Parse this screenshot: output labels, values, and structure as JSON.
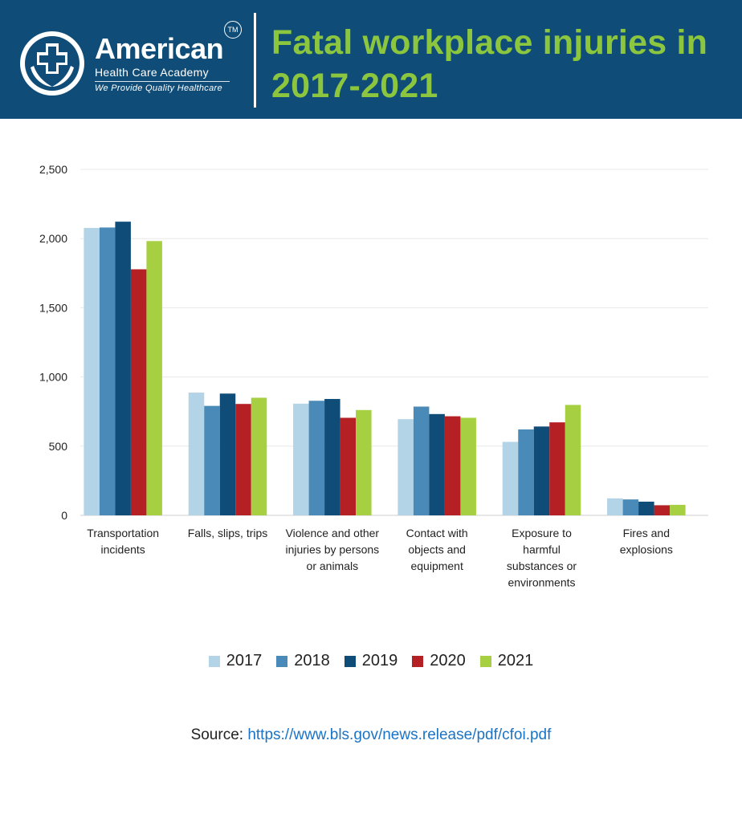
{
  "header": {
    "brand_name": "American",
    "brand_tm": "TM",
    "brand_sub": "Health Care Academy",
    "brand_tag": "We Provide Quality Healthcare",
    "title": "Fatal workplace injuries in 2017-2021",
    "background": "#0f4d78",
    "title_color": "#8cc63f"
  },
  "chart_data": {
    "type": "bar",
    "title": "Fatal workplace injuries in 2017-2021",
    "xlabel": "",
    "ylabel": "",
    "ylim": [
      0,
      2500
    ],
    "yticks": [
      0,
      500,
      1000,
      1500,
      2000,
      2500
    ],
    "ytick_labels": [
      "0",
      "500",
      "1,000",
      "1,500",
      "2,000",
      "2,500"
    ],
    "grid": true,
    "legend_position": "bottom",
    "categories": [
      [
        "Transportation",
        "incidents"
      ],
      [
        "Falls, slips, trips"
      ],
      [
        "Violence and other",
        "injuries by persons",
        "or animals"
      ],
      [
        "Contact with",
        "objects and",
        "equipment"
      ],
      [
        "Exposure to",
        "harmful",
        "substances or",
        "environments"
      ],
      [
        "Fires and",
        "explosions"
      ]
    ],
    "series": [
      {
        "name": "2017",
        "color": "#b3d3e6",
        "values": [
          2077,
          887,
          807,
          695,
          531,
          123
        ]
      },
      {
        "name": "2018",
        "color": "#4a8ab8",
        "values": [
          2080,
          791,
          828,
          786,
          621,
          115
        ]
      },
      {
        "name": "2019",
        "color": "#0f4d78",
        "values": [
          2122,
          880,
          841,
          732,
          642,
          99
        ]
      },
      {
        "name": "2020",
        "color": "#b52025",
        "values": [
          1778,
          805,
          705,
          716,
          672,
          73
        ]
      },
      {
        "name": "2021",
        "color": "#a6cf42",
        "values": [
          1982,
          850,
          761,
          705,
          798,
          76
        ]
      }
    ]
  },
  "source": {
    "label": "Source:",
    "url": "https://www.bls.gov/news.release/pdf/cfoi.pdf"
  }
}
